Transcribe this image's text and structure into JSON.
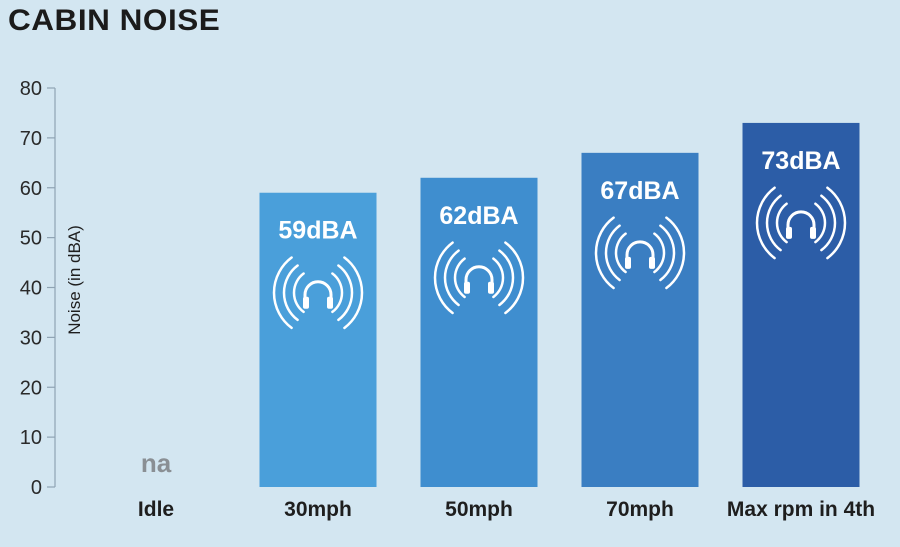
{
  "chart_data": {
    "type": "bar",
    "title": "CABIN NOISE",
    "ylabel": "Noise (in dBA)",
    "xlabel": "",
    "ylim": [
      0,
      80
    ],
    "yticks": [
      0,
      10,
      20,
      30,
      40,
      50,
      60,
      70,
      80
    ],
    "categories": [
      "Idle",
      "30mph",
      "50mph",
      "70mph",
      "Max rpm in 4th"
    ],
    "values": [
      null,
      59,
      62,
      67,
      73
    ],
    "data_labels": [
      "na",
      "59dBA",
      "62dBA",
      "67dBA",
      "73dBA"
    ],
    "colors": [
      "#8a8f94",
      "#4a9fda",
      "#3f8ecf",
      "#3a7ec2",
      "#2c5da7"
    ],
    "icon": "headphones-sound-waves-icon",
    "grid": false,
    "legend": "none"
  }
}
